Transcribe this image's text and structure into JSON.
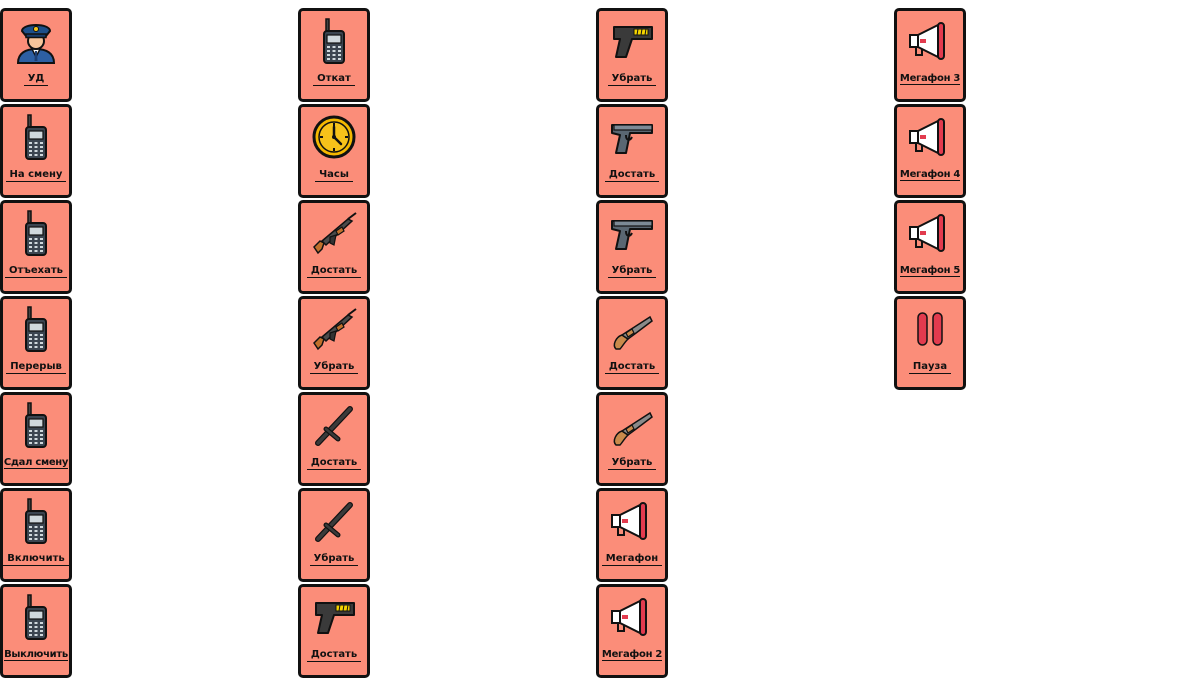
{
  "columns": [
    [
      {
        "icon": "police-officer-icon",
        "label": "УД"
      },
      {
        "icon": "radio-icon",
        "label": "На смену"
      },
      {
        "icon": "radio-icon",
        "label": "Отъехать"
      },
      {
        "icon": "radio-icon",
        "label": "Перерыв"
      },
      {
        "icon": "radio-icon",
        "label": "Сдал смену"
      },
      {
        "icon": "radio-icon",
        "label": "Включить"
      },
      {
        "icon": "radio-icon",
        "label": "Выключить"
      }
    ],
    [
      {
        "icon": "radio-icon",
        "label": "Откат"
      },
      {
        "icon": "clock-icon",
        "label": "Часы"
      },
      {
        "icon": "rifle-icon",
        "label": "Достать"
      },
      {
        "icon": "rifle-icon",
        "label": "Убрать"
      },
      {
        "icon": "baton-icon",
        "label": "Достать"
      },
      {
        "icon": "baton-icon",
        "label": "Убрать"
      },
      {
        "icon": "taser-icon",
        "label": "Достать"
      }
    ],
    [
      {
        "icon": "taser-icon",
        "label": "Убрать"
      },
      {
        "icon": "pistol-icon",
        "label": "Достать"
      },
      {
        "icon": "pistol-icon",
        "label": "Убрать"
      },
      {
        "icon": "flintlock-icon",
        "label": "Достать"
      },
      {
        "icon": "flintlock-icon",
        "label": "Убрать"
      },
      {
        "icon": "megaphone-icon",
        "label": "Мегафон"
      },
      {
        "icon": "megaphone-icon",
        "label": "Мегафон 2"
      }
    ],
    [
      {
        "icon": "megaphone-icon",
        "label": "Мегафон 3"
      },
      {
        "icon": "megaphone-icon",
        "label": "Мегафон 4"
      },
      {
        "icon": "megaphone-icon",
        "label": "Мегафон 5"
      },
      {
        "icon": "pause-icon",
        "label": "Пауза"
      }
    ]
  ],
  "colors": {
    "tile_background": "#fb8d79",
    "tile_border": "#111111"
  }
}
